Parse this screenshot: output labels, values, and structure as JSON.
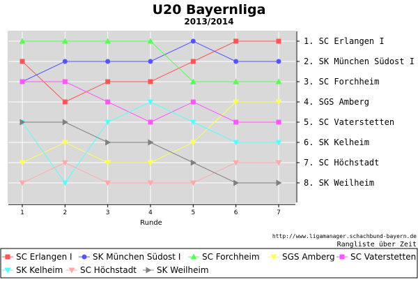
{
  "chart_data": {
    "type": "line",
    "title": "U20 Bayernliga",
    "subtitle": "2013/2014",
    "xlabel": "Runde",
    "x": [
      1,
      2,
      3,
      4,
      5,
      6,
      7
    ],
    "xlim": [
      0.7,
      7.3
    ],
    "ylim": [
      1,
      8
    ],
    "y_inverted": true,
    "grid": true,
    "plot_background": "#d9d9d9",
    "rank_labels": [
      "1. SC Erlangen I",
      "2. SK München Südost I",
      "3. SC Forchheim",
      "4. SGS Amberg",
      "5. SC Vaterstetten",
      "6. SK Kelheim",
      "7. SC Höchstadt",
      "8. SK Weilheim"
    ],
    "series": [
      {
        "name": "SC Erlangen I",
        "color": "#ff5555",
        "marker": "square",
        "values": [
          2,
          4,
          3,
          3,
          2,
          1,
          1
        ]
      },
      {
        "name": "SK München Südost I",
        "color": "#5555ff",
        "marker": "circle",
        "values": [
          3,
          2,
          2,
          2,
          1,
          2,
          2
        ]
      },
      {
        "name": "SC Forchheim",
        "color": "#55ff55",
        "marker": "triangle-up",
        "values": [
          1,
          1,
          1,
          1,
          3,
          3,
          3
        ]
      },
      {
        "name": "SGS Amberg",
        "color": "#ffff55",
        "marker": "triangle-down",
        "values": [
          7,
          6,
          7,
          7,
          6,
          4,
          4
        ]
      },
      {
        "name": "SC Vaterstetten",
        "color": "#ff55ff",
        "marker": "square",
        "values": [
          3,
          3,
          4,
          5,
          4,
          5,
          5
        ]
      },
      {
        "name": "SK Kelheim",
        "color": "#55ffff",
        "marker": "triangle-down",
        "values": [
          5,
          8,
          5,
          4,
          5,
          6,
          6
        ]
      },
      {
        "name": "SC Höchstadt",
        "color": "#ffaaaa",
        "marker": "triangle-down",
        "values": [
          8,
          7,
          8,
          8,
          8,
          7,
          7
        ]
      },
      {
        "name": "SK Weilheim",
        "color": "#808080",
        "marker": "triangle-right",
        "values": [
          5,
          5,
          6,
          6,
          7,
          8,
          8
        ]
      }
    ],
    "legend_placement": "bottom",
    "source_url": "http://www.ligamanager.schachbund-bayern.de",
    "caption": "Rangliste über Zeit"
  }
}
